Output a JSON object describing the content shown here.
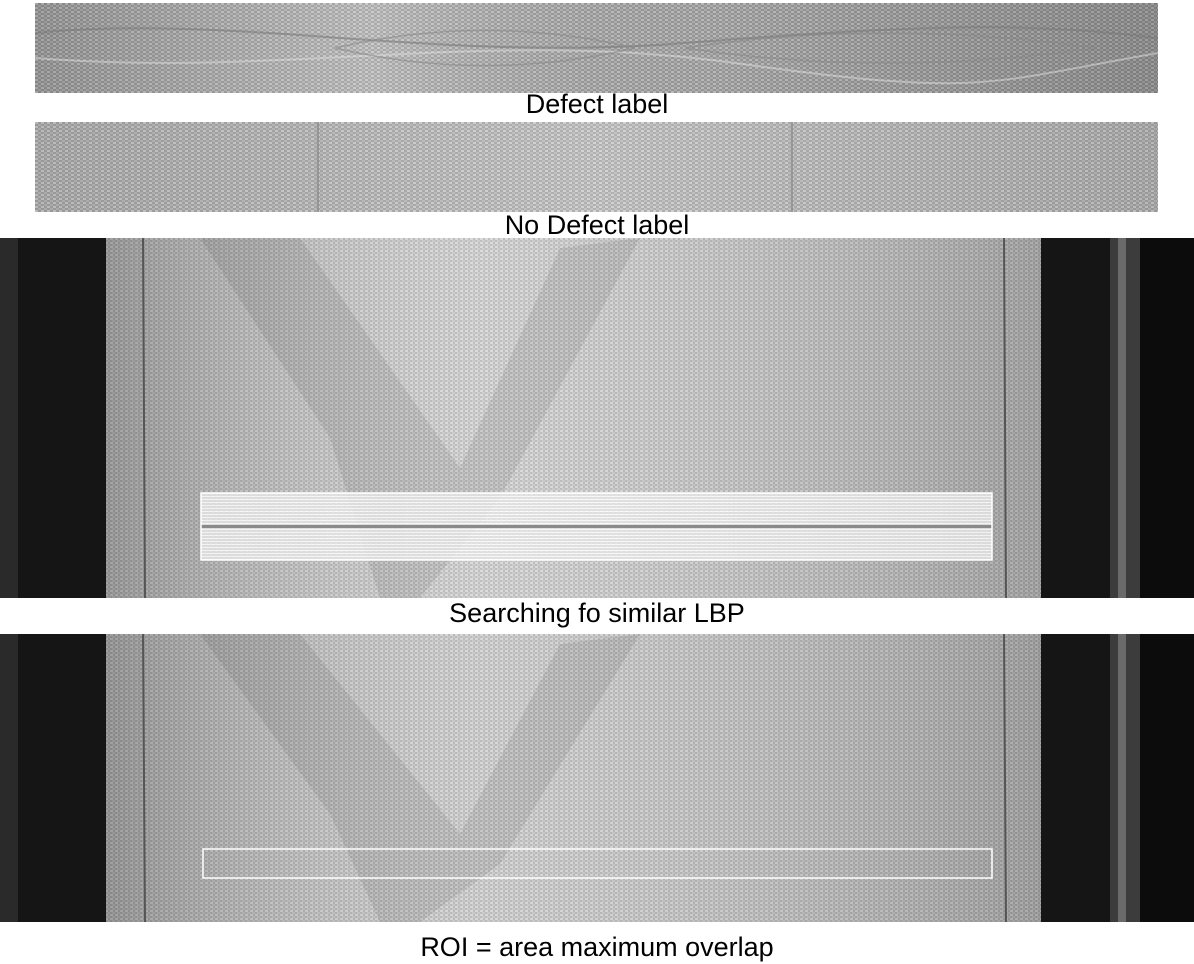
{
  "captions": {
    "defect": "Defect label",
    "no_defect": "No Defect label",
    "search": "Searching fo similar LBP",
    "roi": "ROI = area maximum overlap"
  },
  "colors": {
    "fabric_light": "#d6d6d6",
    "fabric_mid": "#a8a8a8",
    "background_dark": "#141414",
    "highlight": "#ffffff"
  }
}
